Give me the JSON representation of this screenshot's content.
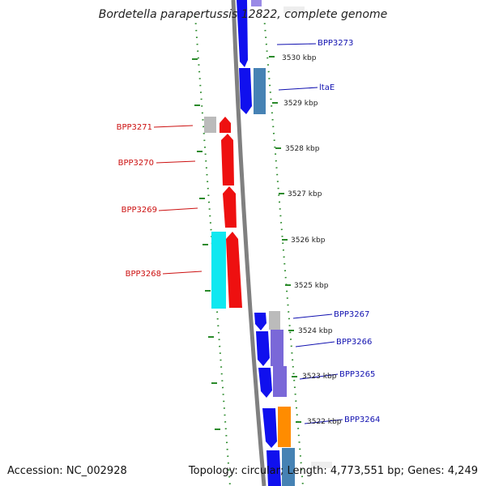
{
  "title": "Bordetella parapertussis 12822, complete genome",
  "footer": {
    "accession": "Accession: NC_002928",
    "topology": "Topology: circular;",
    "length": "Length: 4,773,551 bp;",
    "genes": "Genes: 4,249"
  },
  "colors": {
    "backbone": "#808080",
    "ruler_dots": "#2a8a2a",
    "forward_label": "#1010b0",
    "reverse_label": "#cc1010",
    "gene_blue": "#1010ee",
    "gene_red": "#ee1010",
    "gene_cyan": "#10e8f0",
    "gene_purple": "#7a68d8",
    "gene_steel": "#4682b4",
    "gene_grey": "#bbbbbb",
    "gene_orange": "#ff8c00"
  },
  "scale_labels": [
    "3530 kbp",
    "3529 kbp",
    "3528 kbp",
    "3527 kbp",
    "3526 kbp",
    "3525 kbp",
    "3524 kbp",
    "3523 kbp",
    "3522 kbp"
  ],
  "gene_labels": {
    "forward": [
      "BPP3273",
      "ltaE",
      "BPP3267",
      "BPP3266",
      "BPP3265",
      "BPP3264"
    ],
    "reverse": [
      "BPP3271",
      "BPP3270",
      "BPP3269",
      "BPP3268"
    ]
  }
}
